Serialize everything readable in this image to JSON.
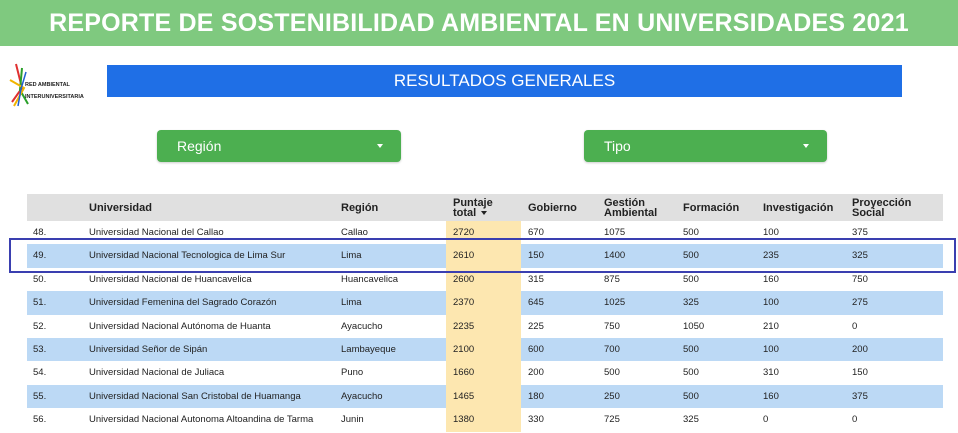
{
  "header": {
    "title": "REPORTE DE SOSTENIBILIDAD AMBIENTAL EN UNIVERSIDADES 2021"
  },
  "logo": {
    "line1": "RED AMBIENTAL",
    "line2": "INTERUNIVERSITARIA"
  },
  "results": {
    "title": "RESULTADOS GENERALES"
  },
  "filters": {
    "region_label": "Región",
    "tipo_label": "Tipo"
  },
  "table": {
    "columns": {
      "universidad": "Universidad",
      "region": "Región",
      "puntaje_line1": "Puntaje",
      "puntaje_line2": "total",
      "gobierno": "Gobierno",
      "gestion_line1": "Gestión",
      "gestion_line2": "Ambiental",
      "formacion": "Formación",
      "investigacion": "Investigación",
      "proyeccion_line1": "Proyección",
      "proyeccion_line2": "Social"
    },
    "rows": [
      {
        "rank": "48.",
        "universidad": "Universidad Nacional del Callao",
        "region": "Callao",
        "puntaje": "2720",
        "gobierno": "670",
        "gestion": "1075",
        "formacion": "500",
        "investigacion": "100",
        "proyeccion": "375"
      },
      {
        "rank": "49.",
        "universidad": "Universidad Nacional Tecnologica de Lima Sur",
        "region": "Lima",
        "puntaje": "2610",
        "gobierno": "150",
        "gestion": "1400",
        "formacion": "500",
        "investigacion": "235",
        "proyeccion": "325"
      },
      {
        "rank": "50.",
        "universidad": "Universidad Nacional de Huancavelica",
        "region": "Huancavelica",
        "puntaje": "2600",
        "gobierno": "315",
        "gestion": "875",
        "formacion": "500",
        "investigacion": "160",
        "proyeccion": "750"
      },
      {
        "rank": "51.",
        "universidad": "Universidad Femenina del Sagrado Corazón",
        "region": "Lima",
        "puntaje": "2370",
        "gobierno": "645",
        "gestion": "1025",
        "formacion": "325",
        "investigacion": "100",
        "proyeccion": "275"
      },
      {
        "rank": "52.",
        "universidad": "Universidad Nacional Autónoma de Huanta",
        "region": "Ayacucho",
        "puntaje": "2235",
        "gobierno": "225",
        "gestion": "750",
        "formacion": "1050",
        "investigacion": "210",
        "proyeccion": "0"
      },
      {
        "rank": "53.",
        "universidad": "Universidad Señor de Sipán",
        "region": "Lambayeque",
        "puntaje": "2100",
        "gobierno": "600",
        "gestion": "700",
        "formacion": "500",
        "investigacion": "100",
        "proyeccion": "200"
      },
      {
        "rank": "54.",
        "universidad": "Universidad Nacional de Juliaca",
        "region": "Puno",
        "puntaje": "1660",
        "gobierno": "200",
        "gestion": "500",
        "formacion": "500",
        "investigacion": "310",
        "proyeccion": "150"
      },
      {
        "rank": "55.",
        "universidad": "Universidad Nacional San Cristobal de Huamanga",
        "region": "Ayacucho",
        "puntaje": "1465",
        "gobierno": "180",
        "gestion": "250",
        "formacion": "500",
        "investigacion": "160",
        "proyeccion": "375"
      },
      {
        "rank": "56.",
        "universidad": "Universidad Nacional Autonoma Altoandina de Tarma",
        "region": "Junin",
        "puntaje": "1380",
        "gobierno": "330",
        "gestion": "725",
        "formacion": "325",
        "investigacion": "0",
        "proyeccion": "0"
      }
    ]
  }
}
